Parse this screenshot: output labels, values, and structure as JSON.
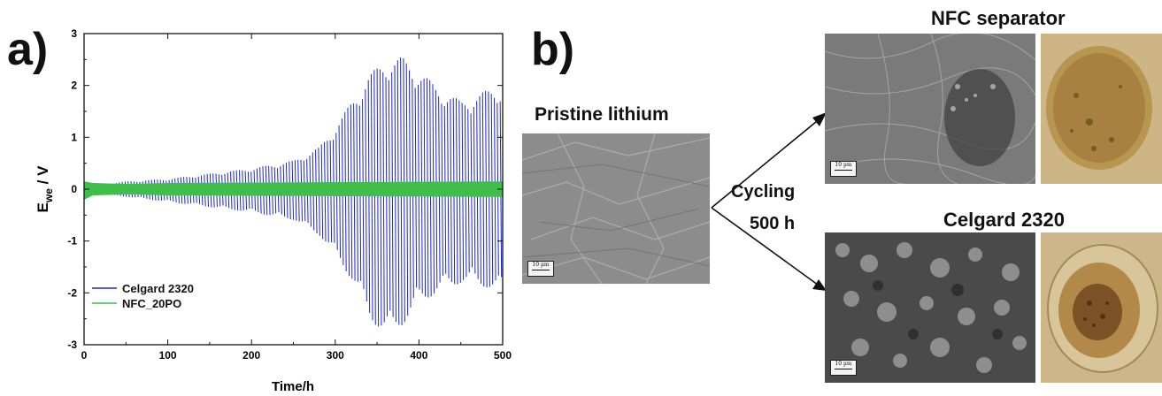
{
  "panels": {
    "a_label": "a)",
    "b_label": "b)"
  },
  "chart_data": {
    "type": "line",
    "xlabel": "Time/h",
    "ylabel": "E_we / V",
    "xlim": [
      0,
      500
    ],
    "ylim": [
      -3,
      3
    ],
    "xticks": [
      0,
      100,
      200,
      300,
      400,
      500
    ],
    "yticks": [
      -3,
      -2,
      -1,
      0,
      1,
      2,
      3
    ],
    "legend_position": "bottom-left",
    "series": [
      {
        "name": "Celgard 2320",
        "color": "#1a23d6",
        "envelope": {
          "t": [
            0,
            20,
            50,
            100,
            150,
            200,
            250,
            280,
            300,
            320,
            340,
            360,
            380,
            400,
            420,
            450,
            480,
            500
          ],
          "upper": [
            0.1,
            0.1,
            0.15,
            0.2,
            0.3,
            0.4,
            0.55,
            0.8,
            1.2,
            1.7,
            2.2,
            2.5,
            2.55,
            2.3,
            2.0,
            1.7,
            1.9,
            2.0
          ],
          "lower": [
            -0.1,
            -0.1,
            -0.15,
            -0.25,
            -0.35,
            -0.45,
            -0.6,
            -0.9,
            -1.3,
            -1.8,
            -2.5,
            -2.85,
            -2.6,
            -2.2,
            -2.0,
            -1.8,
            -1.9,
            -2.0
          ]
        }
      },
      {
        "name": "NFC_20PO",
        "color": "#3fbf4a",
        "envelope": {
          "t": [
            0,
            10,
            50,
            100,
            500
          ],
          "upper": [
            0.15,
            0.12,
            0.1,
            0.12,
            0.15
          ],
          "lower": [
            -0.2,
            -0.12,
            -0.1,
            -0.12,
            -0.15
          ]
        }
      }
    ]
  },
  "figure_b": {
    "pristine_title": "Pristine lithium",
    "cycling_line1": "Cycling",
    "cycling_line2": "500 h",
    "nfc_title": "NFC separator",
    "celgard_title": "Celgard 2320",
    "scale_label": "10 µm"
  }
}
